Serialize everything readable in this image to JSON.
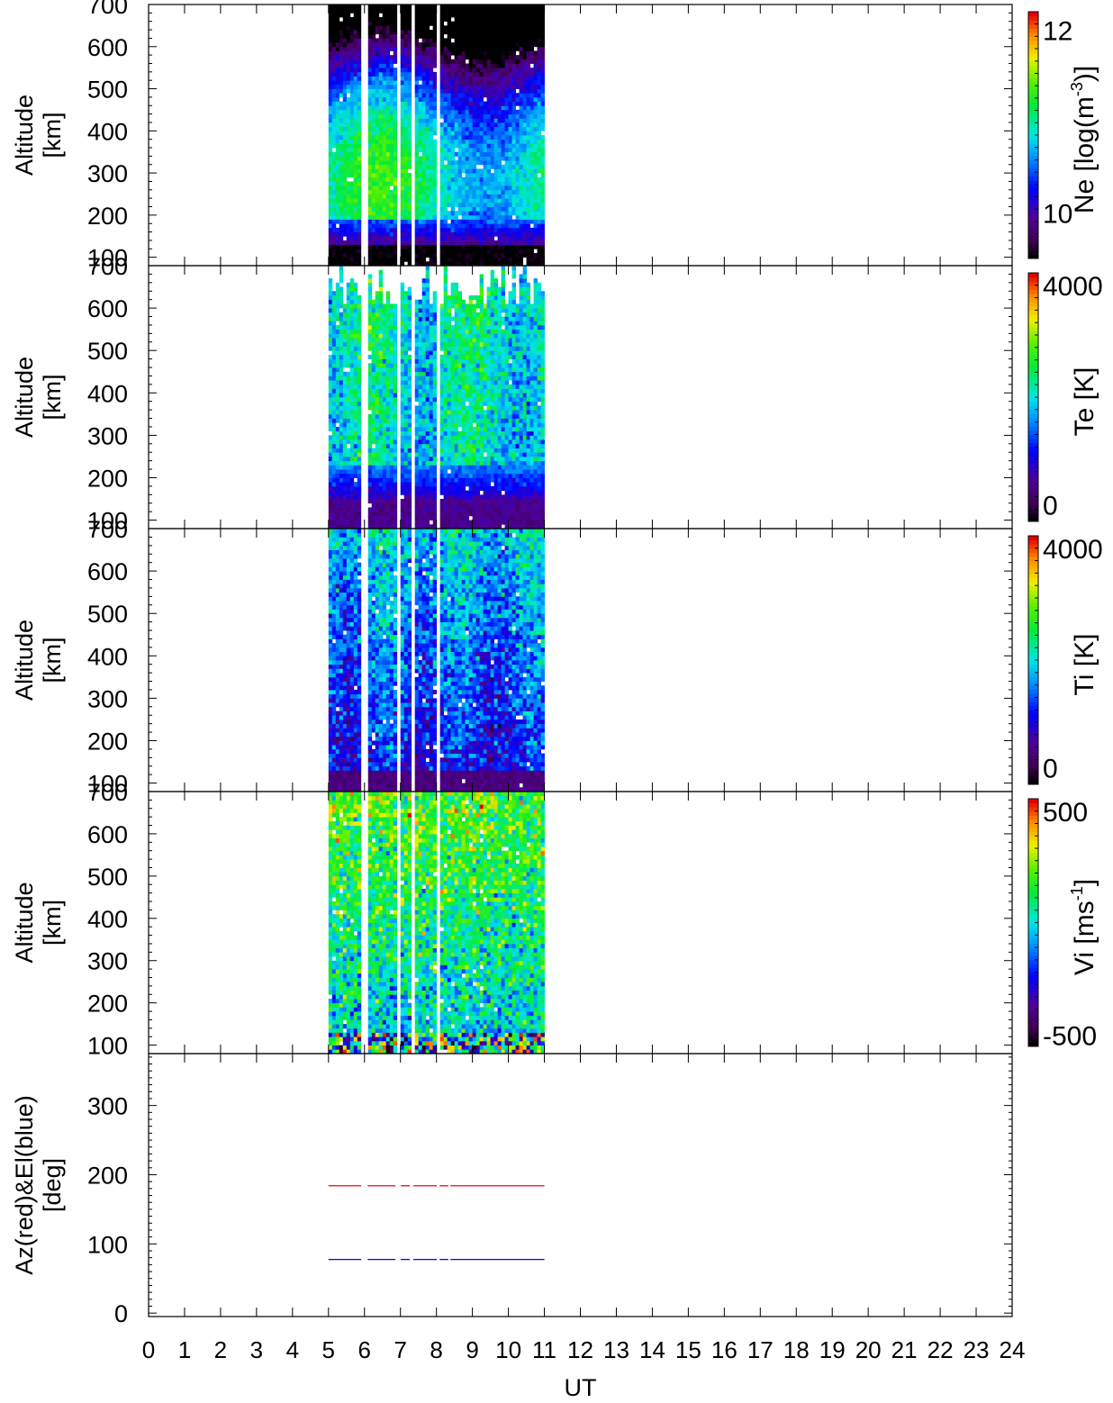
{
  "chart_data": {
    "type": "heatmap",
    "xlabel": "UT",
    "xlim": [
      0,
      24
    ],
    "xticks": [
      "0",
      "1",
      "2",
      "3",
      "4",
      "5",
      "6",
      "7",
      "8",
      "9",
      "10",
      "11",
      "12",
      "13",
      "14",
      "15",
      "16",
      "17",
      "18",
      "19",
      "20",
      "21",
      "22",
      "23",
      "24"
    ],
    "data_time_range": [
      5.0,
      11.0
    ],
    "gaps_ut": [
      [
        5.9,
        6.08
      ],
      [
        6.85,
        7.0
      ],
      [
        7.25,
        7.35
      ],
      [
        8.0,
        8.08
      ],
      [
        8.32,
        8.38
      ]
    ],
    "panels": [
      {
        "type": "heatmap",
        "parameter": "Ne",
        "ylabel": [
          "Altitude",
          "[km]"
        ],
        "ylim": [
          80,
          700
        ],
        "yticks": [
          "100",
          "200",
          "300",
          "400",
          "500",
          "600",
          "700"
        ],
        "colorbar_label": "Ne [log(m^-3)]",
        "colorbar_range": [
          9.5,
          12.2
        ],
        "colorbar_ticks": [
          "10",
          "12"
        ],
        "peak_altitude_km": 280,
        "peak_log_density": 11.3
      },
      {
        "type": "heatmap",
        "parameter": "Te",
        "ylabel": [
          "Altitude",
          "[km]"
        ],
        "ylim": [
          80,
          700
        ],
        "yticks": [
          "100",
          "200",
          "300",
          "400",
          "500",
          "600",
          "700"
        ],
        "colorbar_label": "Te [K]",
        "colorbar_range": [
          -300,
          4200
        ],
        "colorbar_ticks": [
          "0",
          "4000"
        ],
        "typical_upper_value_K": 2400
      },
      {
        "type": "heatmap",
        "parameter": "Ti",
        "ylabel": [
          "Altitude",
          "[km]"
        ],
        "ylim": [
          80,
          700
        ],
        "yticks": [
          "100",
          "200",
          "300",
          "400",
          "500",
          "600",
          "700"
        ],
        "colorbar_label": "Ti [K]",
        "colorbar_range": [
          -300,
          4200
        ],
        "colorbar_ticks": [
          "0",
          "4000"
        ],
        "typical_upper_value_K": 2000
      },
      {
        "type": "heatmap",
        "parameter": "Vi",
        "ylabel": [
          "Altitude",
          "[km]"
        ],
        "ylim": [
          80,
          700
        ],
        "yticks": [
          "100",
          "200",
          "300",
          "400",
          "500",
          "600",
          "700"
        ],
        "colorbar_label": "Vi [ms^-1]",
        "colorbar_range": [
          -550,
          550
        ],
        "colorbar_ticks": [
          "500",
          "-500"
        ],
        "typical_upper_value_ms": 250
      },
      {
        "type": "line",
        "ylabel": [
          "Az(red)&El(blue)",
          "[deg]"
        ],
        "ylim": [
          -5,
          375
        ],
        "yticks": [
          "0",
          "100",
          "200",
          "300"
        ],
        "series": [
          {
            "name": "Az",
            "color": "#ff0000",
            "value": 184
          },
          {
            "name": "El",
            "color": "#0000ff",
            "value": 77.5
          }
        ]
      }
    ]
  }
}
